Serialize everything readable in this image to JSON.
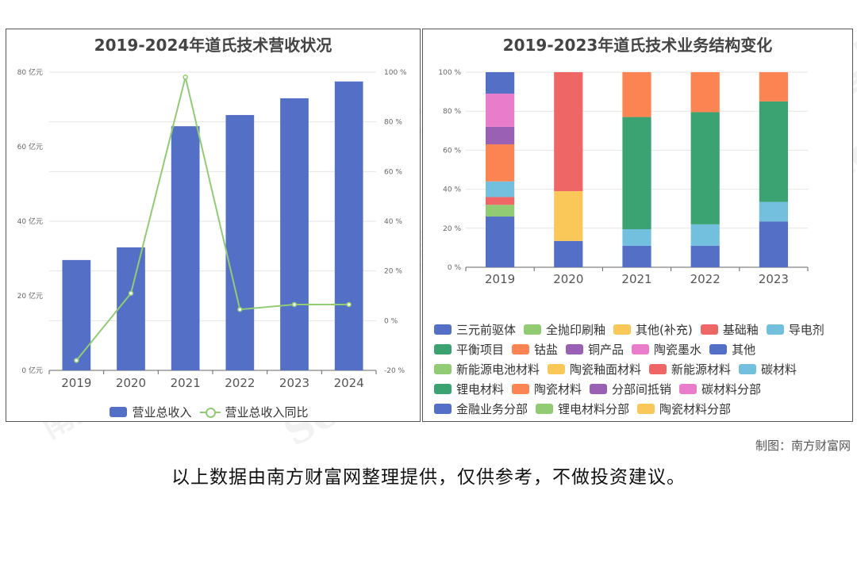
{
  "watermark": {
    "text_cn": "南方财富网",
    "text_en": "Southmoney.com"
  },
  "credit": "制图：南方财富网",
  "disclaimer": "以上数据由南方财富网整理提供，仅供参考，不做投资建议。",
  "chart_data": [
    {
      "type": "bar",
      "title": "2019-2024年道氏技术营收状况",
      "categories": [
        "2019",
        "2020",
        "2021",
        "2022",
        "2023",
        "2024"
      ],
      "y_unit": "亿元",
      "ylim": [
        0,
        80
      ],
      "yticks": [
        "0 亿元",
        "20 亿元",
        "40 亿元",
        "60 亿元",
        "80 亿元"
      ],
      "y2lim": [
        -20,
        100
      ],
      "y2ticks": [
        "-20 %",
        "0 %",
        "20 %",
        "40 %",
        "60 %",
        "80 %",
        "100 %"
      ],
      "series": [
        {
          "name": "营业总收入",
          "type": "bar",
          "color": "#5470c6",
          "values": [
            29.6,
            33,
            65.5,
            68.5,
            73,
            77.5
          ]
        },
        {
          "name": "营业总收入同比",
          "type": "line",
          "axis": "right",
          "color": "#91cc75",
          "values": [
            -16,
            11,
            98,
            4.5,
            6.5,
            6.5
          ]
        }
      ]
    },
    {
      "type": "bar",
      "stacked": "percent",
      "title": "2019-2023年道氏技术业务结构变化",
      "categories": [
        "2019",
        "2020",
        "2021",
        "2022",
        "2023"
      ],
      "ylim": [
        0,
        100
      ],
      "yticks": [
        "0 %",
        "20 %",
        "40 %",
        "60 %",
        "80 %",
        "100 %"
      ],
      "series": [
        {
          "name": "三元前驱体",
          "color": "#5470c6",
          "values": [
            26,
            0,
            0,
            0,
            0
          ]
        },
        {
          "name": "全抛印刷釉",
          "color": "#91cc75",
          "values": [
            6,
            0,
            0,
            0,
            0
          ]
        },
        {
          "name": "其他(补充)",
          "color": "#fac858",
          "values": [
            0,
            0,
            0,
            0,
            0
          ]
        },
        {
          "name": "基础釉",
          "color": "#ee6666",
          "values": [
            4,
            0,
            0,
            0,
            0
          ]
        },
        {
          "name": "导电剂",
          "color": "#73c0de",
          "values": [
            8,
            0,
            0,
            0,
            0
          ]
        },
        {
          "name": "平衡项目",
          "color": "#3ba272",
          "values": [
            0,
            0,
            0,
            0,
            0
          ]
        },
        {
          "name": "钴盐",
          "color": "#fc8452",
          "values": [
            19,
            0,
            0,
            0,
            0
          ]
        },
        {
          "name": "铜产品",
          "color": "#9a60b4",
          "values": [
            9,
            0,
            0,
            0,
            0
          ]
        },
        {
          "name": "陶瓷墨水",
          "color": "#ea7ccc",
          "values": [
            17,
            0,
            0,
            0,
            0
          ]
        },
        {
          "name": "其他",
          "color": "#5470c6",
          "values": [
            11,
            0,
            0,
            0,
            0
          ]
        },
        {
          "name": "新能源电池材料",
          "color": "#91cc75",
          "values": [
            0,
            0,
            0,
            0,
            0
          ]
        },
        {
          "name": "陶瓷釉面材料",
          "color": "#fac858",
          "values": [
            0,
            0,
            0,
            0,
            0
          ]
        },
        {
          "name": "新能源材料",
          "color": "#ee6666",
          "values": [
            0,
            0,
            0,
            0,
            0
          ]
        },
        {
          "name": "碳材料",
          "color": "#73c0de",
          "values": [
            0,
            0,
            0,
            0,
            0
          ]
        },
        {
          "name": "锂电材料",
          "color": "#3ba272",
          "values": [
            0,
            0,
            0,
            0,
            0
          ]
        },
        {
          "name": "陶瓷材料",
          "color": "#fc8452",
          "values": [
            0,
            0,
            0,
            0,
            0
          ]
        },
        {
          "name": "分部间抵销",
          "color": "#9a60b4",
          "values": [
            0,
            0,
            0,
            0,
            0
          ]
        },
        {
          "name": "碳材料分部",
          "color": "#ea7ccc",
          "values": [
            0,
            0,
            0,
            0,
            0
          ]
        },
        {
          "name": "金融业务分部",
          "color": "#5470c6",
          "values": [
            0,
            13.5,
            11,
            11,
            23.5
          ]
        },
        {
          "name": "锂电材料分部",
          "color": "#91cc75",
          "values": [
            0,
            0,
            0,
            0,
            0
          ]
        },
        {
          "name": "陶瓷材料分部",
          "color": "#fac858",
          "values": [
            0,
            25.5,
            0,
            0,
            0
          ]
        },
        {
          "name": "_s21",
          "color": "#ee6666",
          "values": [
            0,
            61,
            0,
            0,
            0
          ]
        },
        {
          "name": "_s22",
          "color": "#73c0de",
          "values": [
            0,
            0,
            8.5,
            11,
            10
          ]
        },
        {
          "name": "_s23",
          "color": "#3ba272",
          "values": [
            0,
            0,
            57.5,
            57.5,
            51.5
          ]
        },
        {
          "name": "_s24",
          "color": "#fc8452",
          "values": [
            0,
            0,
            23,
            20.5,
            15
          ]
        }
      ]
    }
  ]
}
